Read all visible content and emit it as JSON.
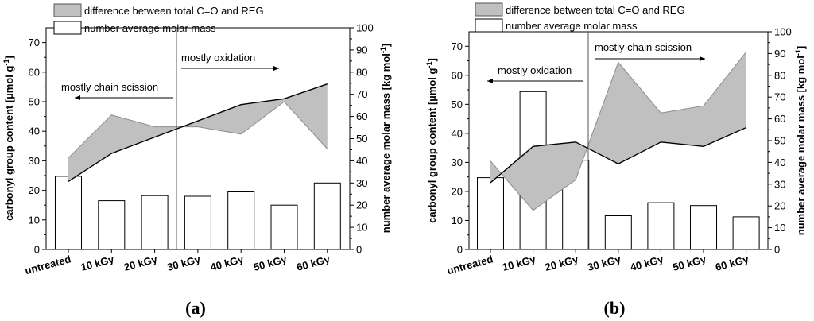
{
  "chart_data": [
    {
      "type": "bar+line+area",
      "panel_label": "(a)",
      "categories": [
        "untreated",
        "10 kGy",
        "20 kGy",
        "30 kGy",
        "40 kGy",
        "50 kGy",
        "60 kGy"
      ],
      "legend": {
        "placement": "top-left",
        "items": [
          {
            "label": "difference between total C=O and REG",
            "kind": "area"
          },
          {
            "label": "number average molar mass",
            "kind": "bar"
          }
        ]
      },
      "left_axis": {
        "label": "carbonyl group content [µmol g",
        "label_sup": "-1",
        "label_end": "]",
        "ylim": [
          0,
          75
        ],
        "ticks": [
          "0",
          "10",
          "20",
          "30",
          "40",
          "50",
          "60",
          "70"
        ]
      },
      "right_axis": {
        "label": "number average molar mass [kg mol",
        "label_sup": "-1",
        "label_end": "]",
        "ylim": [
          0,
          100
        ],
        "ticks": [
          "0",
          "10",
          "20",
          "30",
          "40",
          "50",
          "60",
          "70",
          "80",
          "90",
          "100"
        ]
      },
      "series": [
        {
          "name": "total C=O",
          "axis": "left",
          "values": [
            31,
            45.5,
            41.5,
            41.5,
            39,
            50,
            34
          ]
        },
        {
          "name": "REG",
          "axis": "left",
          "values": [
            23,
            32.5,
            38,
            43.5,
            49,
            51,
            56
          ]
        },
        {
          "name": "number average molar mass",
          "axis": "right",
          "type": "bar",
          "values": [
            33,
            22,
            24.3,
            24,
            26,
            20,
            30
          ]
        }
      ],
      "divider_at": 2.5,
      "annotations": [
        {
          "text": "mostly oxidation",
          "arrow": "right"
        },
        {
          "text": "mostly chain scission",
          "arrow": "left"
        }
      ]
    },
    {
      "type": "bar+line+area",
      "panel_label": "(b)",
      "categories": [
        "untreated",
        "10 kGy",
        "20 kGy",
        "30 kGy",
        "40 kGy",
        "50 kGy",
        "60 kGy"
      ],
      "legend": {
        "placement": "top-left",
        "items": [
          {
            "label": "difference between total C=O and REG",
            "kind": "area"
          },
          {
            "label": "number average molar mass",
            "kind": "bar"
          }
        ]
      },
      "left_axis": {
        "label": "carbonyl group content [µmol g",
        "label_sup": "-1",
        "label_end": "]",
        "ylim": [
          0,
          75
        ],
        "ticks": [
          "0",
          "10",
          "20",
          "30",
          "40",
          "50",
          "60",
          "70"
        ]
      },
      "right_axis": {
        "label": "number average molar mass [kg mol",
        "label_sup": "-1",
        "label_end": "]",
        "ylim": [
          0,
          100
        ],
        "ticks": [
          "0",
          "10",
          "20",
          "30",
          "40",
          "50",
          "60",
          "70",
          "80",
          "90",
          "100"
        ]
      },
      "series": [
        {
          "name": "total C=O",
          "axis": "left",
          "values": [
            30.5,
            13.5,
            24,
            64.5,
            47,
            49.5,
            68
          ]
        },
        {
          "name": "REG",
          "axis": "left",
          "values": [
            23,
            35.5,
            37,
            29.5,
            37,
            35.5,
            42
          ]
        },
        {
          "name": "number average molar mass",
          "axis": "right",
          "type": "bar",
          "values": [
            33,
            72.5,
            41,
            15.5,
            21.5,
            20.2,
            15
          ]
        }
      ],
      "divider_at": 2.5,
      "annotations": [
        {
          "text": "mostly chain scission",
          "arrow": "right"
        },
        {
          "text": "mostly oxidation",
          "arrow": "left"
        }
      ]
    }
  ]
}
